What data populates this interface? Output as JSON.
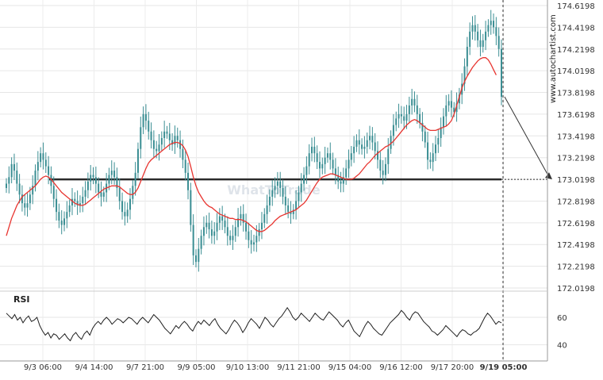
{
  "watermark": "WhatToTrade",
  "side_brand": "www.autochartist.com",
  "chart_data": [
    {
      "type": "candlestick",
      "panel": "price",
      "ylim": [
        172.0198,
        174.6198
      ],
      "y_ticks": [
        "174.6198",
        "174.4198",
        "174.2198",
        "174.0198",
        "173.8198",
        "173.6198",
        "173.4198",
        "173.2198",
        "173.0198",
        "172.8198",
        "172.6198",
        "172.4198",
        "172.2198",
        "172.0198"
      ],
      "x_labels": [
        "9/3 06:00",
        "9/4 14:00",
        "9/7 21:00",
        "9/9 05:00",
        "9/10 13:00",
        "9/11 21:00",
        "9/15 04:00",
        "9/16 12:00",
        "9/17 20:00",
        "9/19 05:00"
      ],
      "support_level": 173.0198,
      "projection": {
        "from_price": 173.78,
        "to_price": 173.0198
      },
      "candle_series": [
        172.98,
        173.04,
        173.16,
        173.1,
        172.98,
        172.88,
        172.8,
        172.76,
        172.8,
        172.88,
        172.96,
        173.1,
        173.18,
        173.26,
        173.2,
        173.14,
        173.06,
        172.96,
        172.84,
        172.72,
        172.64,
        172.6,
        172.66,
        172.72,
        172.78,
        172.84,
        172.82,
        172.78,
        172.8,
        172.86,
        172.92,
        173.0,
        173.06,
        173.04,
        172.98,
        172.9,
        172.86,
        172.9,
        172.98,
        173.06,
        173.1,
        173.04,
        172.94,
        172.82,
        172.72,
        172.68,
        172.74,
        172.84,
        172.96,
        173.08,
        173.3,
        173.5,
        173.62,
        173.56,
        173.46,
        173.38,
        173.3,
        173.28,
        173.34,
        173.4,
        173.46,
        173.44,
        173.38,
        173.34,
        173.42,
        173.38,
        173.3,
        173.2,
        173.08,
        172.92,
        172.6,
        172.32,
        172.26,
        172.38,
        172.5,
        172.58,
        172.62,
        172.56,
        172.5,
        172.54,
        172.62,
        172.68,
        172.64,
        172.58,
        172.5,
        172.46,
        172.5,
        172.58,
        172.66,
        172.7,
        172.62,
        172.54,
        172.46,
        172.42,
        172.44,
        172.5,
        172.56,
        172.62,
        172.7,
        172.78,
        172.86,
        172.92,
        172.96,
        173.0,
        172.94,
        172.86,
        172.78,
        172.72,
        172.7,
        172.74,
        172.82,
        172.9,
        172.98,
        173.06,
        173.14,
        173.26,
        173.32,
        173.26,
        173.18,
        173.12,
        173.16,
        173.22,
        173.26,
        173.2,
        173.12,
        173.06,
        173.0,
        172.98,
        173.04,
        173.12,
        173.2,
        173.26,
        173.32,
        173.38,
        173.34,
        173.3,
        173.32,
        173.38,
        173.42,
        173.36,
        173.28,
        173.2,
        173.1,
        173.06,
        173.16,
        173.3,
        173.42,
        173.52,
        173.58,
        173.62,
        173.6,
        173.56,
        173.62,
        173.7,
        173.76,
        173.7,
        173.62,
        173.54,
        173.46,
        173.36,
        173.2,
        173.18,
        173.26,
        173.34,
        173.4,
        173.5,
        173.6,
        173.7,
        173.74,
        173.68,
        173.64,
        173.72,
        173.8,
        173.9,
        174.06,
        174.24,
        174.38,
        174.44,
        174.38,
        174.3,
        174.24,
        174.3,
        174.38,
        174.44,
        174.48,
        174.42,
        174.34,
        174.22,
        173.78
      ],
      "moving_average": [
        172.5,
        172.58,
        172.66,
        172.72,
        172.78,
        172.82,
        172.86,
        172.88,
        172.9,
        172.92,
        172.94,
        172.96,
        172.99,
        173.02,
        173.04,
        173.05,
        173.04,
        173.02,
        172.99,
        172.96,
        172.93,
        172.9,
        172.88,
        172.86,
        172.84,
        172.82,
        172.8,
        172.79,
        172.78,
        172.78,
        172.79,
        172.81,
        172.83,
        172.85,
        172.87,
        172.89,
        172.91,
        172.93,
        172.94,
        172.95,
        172.96,
        172.96,
        172.96,
        172.95,
        172.93,
        172.91,
        172.89,
        172.88,
        172.88,
        172.9,
        172.94,
        173.0,
        173.06,
        173.12,
        173.17,
        173.2,
        173.22,
        173.24,
        173.26,
        173.28,
        173.3,
        173.32,
        173.34,
        173.35,
        173.36,
        173.36,
        173.35,
        173.33,
        173.29,
        173.23,
        173.14,
        173.04,
        172.96,
        172.9,
        172.86,
        172.82,
        172.79,
        172.77,
        172.76,
        172.74,
        172.72,
        172.7,
        172.69,
        172.68,
        172.67,
        172.66,
        172.66,
        172.65,
        172.65,
        172.65,
        172.64,
        172.63,
        172.61,
        172.59,
        172.57,
        172.55,
        172.54,
        172.54,
        172.55,
        172.57,
        172.59,
        172.61,
        172.64,
        172.66,
        172.68,
        172.69,
        172.7,
        172.71,
        172.72,
        172.73,
        172.74,
        172.76,
        172.78,
        172.8,
        172.83,
        172.87,
        172.91,
        172.95,
        172.99,
        173.02,
        173.04,
        173.05,
        173.06,
        173.07,
        173.07,
        173.06,
        173.05,
        173.04,
        173.03,
        173.02,
        173.02,
        173.02,
        173.03,
        173.05,
        173.07,
        173.1,
        173.13,
        173.16,
        173.18,
        173.21,
        173.24,
        173.26,
        173.28,
        173.3,
        173.32,
        173.33,
        173.35,
        173.37,
        173.4,
        173.43,
        173.46,
        173.49,
        173.52,
        173.54,
        173.56,
        173.57,
        173.56,
        173.54,
        173.52,
        173.5,
        173.48,
        173.47,
        173.47,
        173.47,
        173.48,
        173.49,
        173.5,
        173.51,
        173.53,
        173.56,
        173.62,
        173.7,
        173.78,
        173.86,
        173.92,
        173.97,
        174.01,
        174.05,
        174.08,
        174.11,
        174.13,
        174.14,
        174.14,
        174.12,
        174.08,
        174.03,
        173.98
      ]
    },
    {
      "type": "line",
      "panel": "indicator",
      "name": "RSI",
      "ylim": [
        30,
        75
      ],
      "y_ticks": [
        "60",
        "40"
      ],
      "values": [
        63,
        61,
        59,
        62,
        58,
        60,
        56,
        59,
        61,
        57,
        58,
        60,
        54,
        50,
        47,
        49,
        45,
        48,
        47,
        44,
        46,
        48,
        45,
        43,
        47,
        49,
        46,
        44,
        48,
        50,
        47,
        52,
        55,
        57,
        55,
        58,
        60,
        58,
        55,
        57,
        59,
        58,
        56,
        58,
        60,
        59,
        57,
        55,
        58,
        60,
        58,
        56,
        59,
        62,
        60,
        58,
        55,
        52,
        50,
        48,
        51,
        54,
        52,
        55,
        57,
        55,
        52,
        50,
        54,
        57,
        55,
        58,
        56,
        54,
        57,
        59,
        55,
        52,
        50,
        48,
        51,
        55,
        58,
        56,
        53,
        49,
        52,
        56,
        59,
        57,
        55,
        52,
        56,
        60,
        58,
        55,
        53,
        56,
        59,
        61,
        64,
        67,
        64,
        60,
        58,
        60,
        63,
        61,
        59,
        57,
        60,
        63,
        61,
        59,
        58,
        61,
        64,
        62,
        60,
        58,
        55,
        53,
        56,
        58,
        54,
        50,
        48,
        46,
        50,
        54,
        57,
        55,
        52,
        50,
        48,
        47,
        50,
        53,
        56,
        58,
        60,
        62,
        65,
        63,
        60,
        58,
        62,
        64,
        63,
        60,
        57,
        55,
        53,
        50,
        49,
        47,
        49,
        51,
        54,
        52,
        50,
        48,
        46,
        49,
        51,
        50,
        48,
        47,
        49,
        50,
        52,
        56,
        60,
        63,
        61,
        58,
        55,
        57,
        56
      ]
    }
  ]
}
